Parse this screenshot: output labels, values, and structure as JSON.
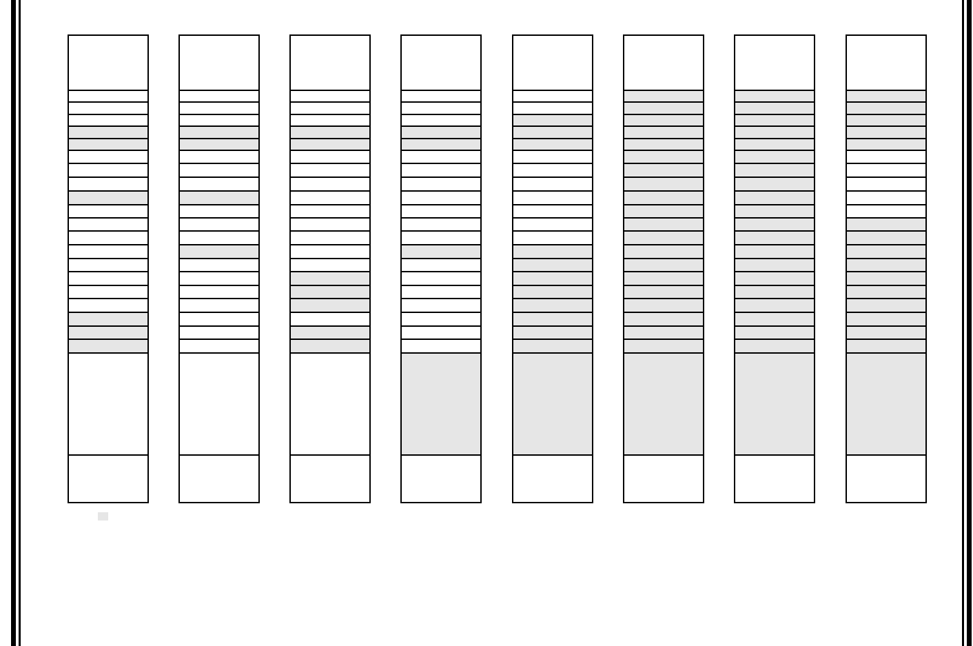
{
  "colors": {
    "shaded": "#e6e6e6",
    "unshaded": "#ffffff",
    "border": "#000000"
  },
  "columns": [
    {
      "rows_shaded": [
        0,
        0,
        0,
        1,
        1,
        0,
        0,
        0,
        1,
        0,
        0,
        0,
        0,
        0,
        0,
        0,
        0,
        1,
        1,
        1
      ],
      "body_shaded": false
    },
    {
      "rows_shaded": [
        0,
        0,
        0,
        1,
        1,
        0,
        0,
        0,
        1,
        0,
        0,
        0,
        1,
        0,
        0,
        0,
        0,
        0,
        0,
        0
      ],
      "body_shaded": false
    },
    {
      "rows_shaded": [
        0,
        0,
        0,
        1,
        1,
        0,
        0,
        0,
        0,
        0,
        0,
        0,
        0,
        0,
        1,
        1,
        1,
        0,
        1,
        1
      ],
      "body_shaded": false
    },
    {
      "rows_shaded": [
        0,
        0,
        0,
        1,
        1,
        0,
        0,
        0,
        0,
        0,
        0,
        0,
        1,
        0,
        0,
        0,
        0,
        0,
        0,
        0
      ],
      "body_shaded": true
    },
    {
      "rows_shaded": [
        0,
        0,
        1,
        1,
        1,
        0,
        0,
        0,
        0,
        0,
        0,
        0,
        1,
        1,
        1,
        1,
        1,
        1,
        1,
        1
      ],
      "body_shaded": true
    },
    {
      "rows_shaded": [
        1,
        1,
        1,
        1,
        1,
        1,
        1,
        1,
        1,
        1,
        1,
        1,
        1,
        1,
        1,
        1,
        1,
        1,
        1,
        1
      ],
      "body_shaded": true
    },
    {
      "rows_shaded": [
        1,
        1,
        1,
        1,
        1,
        1,
        1,
        1,
        1,
        1,
        1,
        1,
        1,
        1,
        1,
        1,
        1,
        1,
        1,
        1
      ],
      "body_shaded": true
    },
    {
      "rows_shaded": [
        1,
        1,
        1,
        1,
        1,
        0,
        0,
        0,
        0,
        0,
        1,
        1,
        1,
        1,
        1,
        1,
        1,
        1,
        1,
        1
      ],
      "body_shaded": true
    }
  ],
  "legend": {
    "swatch_color": "#e6e6e6"
  }
}
